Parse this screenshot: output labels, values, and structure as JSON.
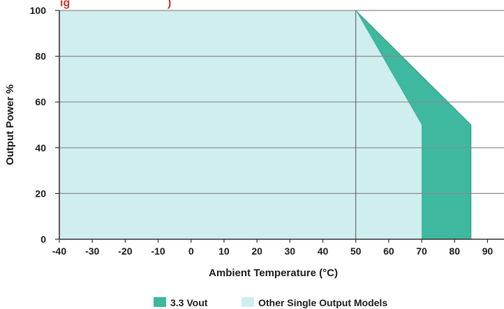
{
  "chart_data": {
    "type": "area",
    "title": "",
    "xlabel": "Ambient Temperature (°C)",
    "ylabel": "Output Power %",
    "xlim": [
      -40,
      95
    ],
    "ylim": [
      0,
      100
    ],
    "x_ticks": [
      -40,
      -30,
      -20,
      -10,
      0,
      10,
      20,
      30,
      40,
      50,
      60,
      70,
      80,
      90
    ],
    "x_tick_labels": [
      "-40",
      "-30",
      "-20",
      "-10",
      "0",
      "10",
      "20",
      "30",
      "40",
      "50",
      "60",
      "70",
      "80",
      "90"
    ],
    "y_ticks": [
      0,
      20,
      40,
      60,
      80,
      100
    ],
    "y_tick_labels": [
      "0",
      "20",
      "40",
      "60",
      "80",
      "100"
    ],
    "grid": "horizontal",
    "legend_position": "bottom",
    "series": [
      {
        "name": "Other Single Output Models",
        "color": "#cfeeed",
        "points": [
          [
            -40,
            0
          ],
          [
            -40,
            100
          ],
          [
            50,
            100
          ],
          [
            70,
            50
          ],
          [
            70,
            0
          ]
        ]
      },
      {
        "name": "3.3 Vout",
        "color": "#3fb8a0",
        "points": [
          [
            -40,
            0
          ],
          [
            -40,
            100
          ],
          [
            50,
            100
          ],
          [
            85,
            50
          ],
          [
            85,
            0
          ]
        ]
      }
    ],
    "reference_lines": [
      {
        "axis": "x",
        "value": 50
      }
    ]
  },
  "colors": {
    "grid": "#8a8a8a",
    "axis": "#333333",
    "title_fragment": "#c0392b"
  }
}
